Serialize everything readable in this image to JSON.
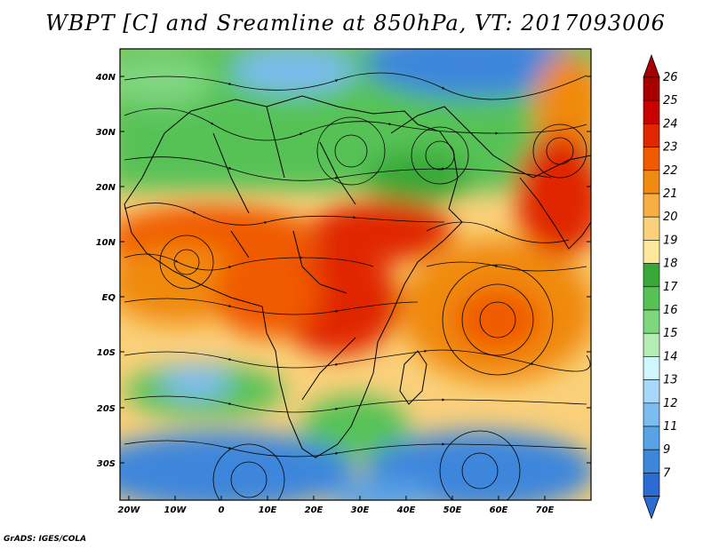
{
  "title": "WBPT [C] and Sreamline at 850hPa, VT: 2017093006",
  "credit": "GrADS: IGES/COLA",
  "lat_labels": [
    "40N",
    "30N",
    "20N",
    "10N",
    "EQ",
    "10S",
    "20S",
    "30S"
  ],
  "lon_labels": [
    "20W",
    "10W",
    "0",
    "10E",
    "20E",
    "30E",
    "40E",
    "50E",
    "60E",
    "70E"
  ],
  "colorbar": {
    "levels": [
      "26",
      "25",
      "24",
      "23",
      "22",
      "21",
      "20",
      "19",
      "18",
      "17",
      "16",
      "15",
      "14",
      "13",
      "12",
      "11",
      "9",
      "7"
    ],
    "colors": [
      "#a80000",
      "#c80000",
      "#e02800",
      "#f05a00",
      "#f08a10",
      "#f8ae40",
      "#fad07a",
      "#fde89c",
      "#38a838",
      "#56c256",
      "#7ed67e",
      "#b4ecb4",
      "#d2f6ff",
      "#a8d8f8",
      "#7cbcf0",
      "#58a2e6",
      "#3c86dc",
      "#2a6cd4"
    ],
    "top_arrow_color": "#a80000",
    "bottom_arrow_color": "#2a6cd4"
  },
  "colors": {
    "land_outline": "#000000",
    "streamline": "#000000"
  }
}
